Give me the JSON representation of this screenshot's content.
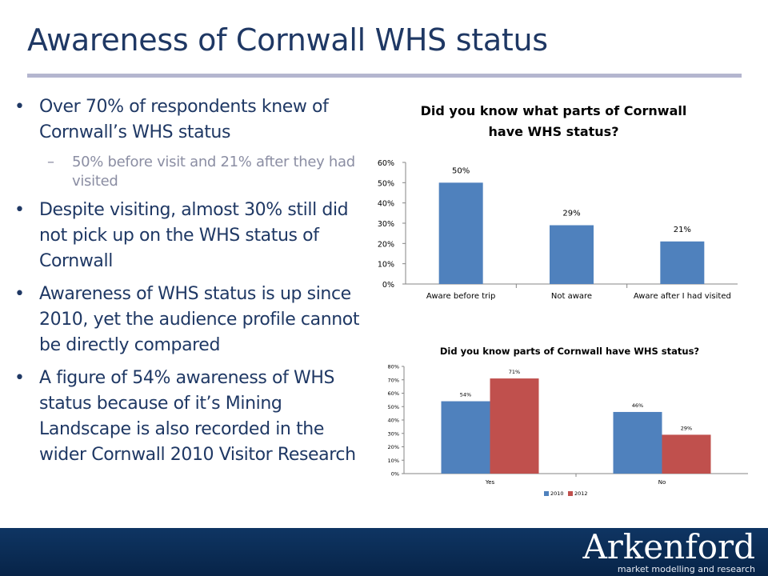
{
  "slide": {
    "title": "Awareness of Cornwall WHS status"
  },
  "bullets": [
    {
      "text": "Over 70% of respondents knew of Cornwall’s WHS status",
      "sub": [
        "50% before visit and 21% after they had visited"
      ]
    },
    {
      "text": "Despite visiting, almost 30% still did not pick up on the WHS status of Cornwall",
      "sub": []
    },
    {
      "text": "Awareness of WHS status is up since 2010, yet the audience profile cannot be directly compared",
      "sub": []
    },
    {
      "text": "A figure of 54% awareness of WHS status because of it’s Mining Landscape is also recorded in the wider Cornwall 2010 Visitor Research",
      "sub": []
    }
  ],
  "logo": {
    "name": "Arkenford",
    "tagline": "market modelling and research"
  },
  "colors": {
    "title": "#1f3864",
    "bar_2010": "#4f81bd",
    "bar_2012": "#c0504d",
    "footer": "#0f3563"
  },
  "chart_data": [
    {
      "type": "bar",
      "title": "Did you know what parts of Cornwall have WHS status?",
      "title_lines": [
        "Did you know what parts of Cornwall",
        "have WHS status?"
      ],
      "categories": [
        "Aware before trip",
        "Not aware",
        "Aware after I had visited"
      ],
      "values": [
        50,
        29,
        21
      ],
      "data_labels": [
        "50%",
        "29%",
        "21%"
      ],
      "ylim": [
        0,
        60
      ],
      "yticks": [
        0,
        10,
        20,
        30,
        40,
        50,
        60
      ],
      "ytick_labels": [
        "0%",
        "10%",
        "20%",
        "30%",
        "40%",
        "50%",
        "60%"
      ],
      "xlabel": "",
      "ylabel": "",
      "grid": false,
      "legend": "none",
      "colors": [
        "#4f81bd"
      ]
    },
    {
      "type": "bar",
      "title": "Did you know parts of Cornwall have WHS status?",
      "categories": [
        "Yes",
        "No"
      ],
      "series": [
        {
          "name": "2010",
          "values": [
            54,
            46
          ],
          "data_labels": [
            "54%",
            "46%"
          ],
          "color": "#4f81bd"
        },
        {
          "name": "2012",
          "values": [
            71,
            29
          ],
          "data_labels": [
            "71%",
            "29%"
          ],
          "color": "#c0504d"
        }
      ],
      "ylim": [
        0,
        80
      ],
      "yticks": [
        0,
        10,
        20,
        30,
        40,
        50,
        60,
        70,
        80
      ],
      "ytick_labels": [
        "0%",
        "10%",
        "20%",
        "30%",
        "40%",
        "50%",
        "60%",
        "70%",
        "80%"
      ],
      "xlabel": "",
      "ylabel": "",
      "grid": false,
      "legend": "bottom"
    }
  ]
}
